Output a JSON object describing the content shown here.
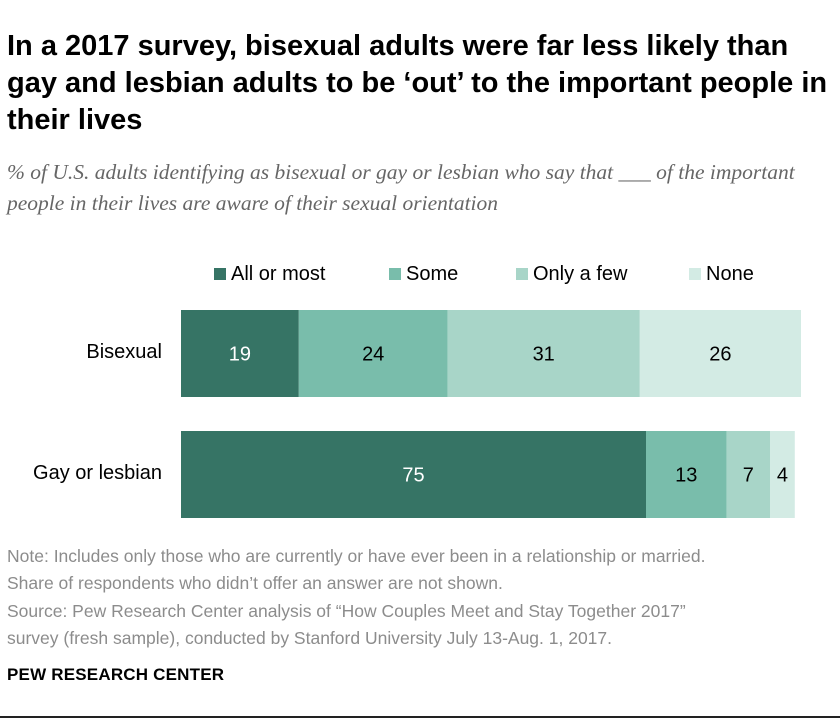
{
  "title": "In a 2017 survey, bisexual adults were far less likely than gay and lesbian adults to be ‘out’ to the important people in their lives",
  "subtitle": "% of U.S. adults identifying as bisexual or gay or lesbian who say that ___ of the important people in their lives are aware of their sexual orientation",
  "chart_data": {
    "type": "bar",
    "orientation": "horizontal",
    "stacked": true,
    "categories": [
      "Bisexual",
      "Gay or lesbian"
    ],
    "series": [
      {
        "name": "All or most",
        "color": "#367465",
        "label_color": "#ffffff",
        "values": [
          19,
          75
        ]
      },
      {
        "name": "Some",
        "color": "#79bdab",
        "label_color": "#000000",
        "values": [
          24,
          13
        ]
      },
      {
        "name": "Only a few",
        "color": "#a8d5c8",
        "label_color": "#000000",
        "values": [
          31,
          7
        ]
      },
      {
        "name": "None",
        "color": "#d3ebe4",
        "label_color": "#000000",
        "values": [
          26,
          4
        ]
      }
    ],
    "xlim": [
      0,
      100
    ],
    "legend_position": "top",
    "grid": false
  },
  "notes": [
    "Note: Includes only those who are currently or have ever been in a relationship or married.",
    "Share of respondents who didn’t offer an answer are not shown."
  ],
  "source": [
    "Source: Pew Research Center analysis of “How Couples Meet and Stay Together 2017”",
    "survey (fresh sample), conducted by Stanford University July 13-Aug. 1, 2017."
  ],
  "brand": "PEW RESEARCH CENTER"
}
